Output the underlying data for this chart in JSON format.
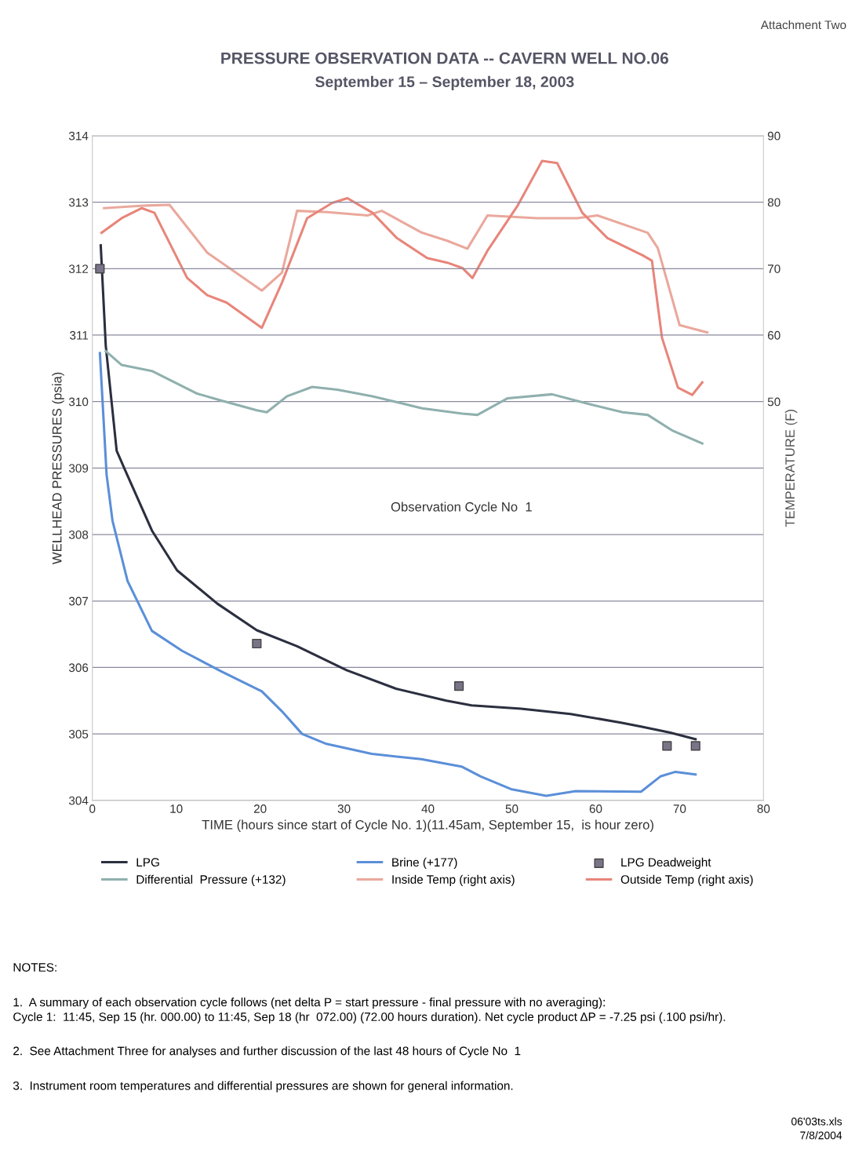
{
  "chart_data": {
    "type": "line",
    "title": "PRESSURE OBSERVATION DATA -- CAVERN WELL NO.06",
    "subtitle": "September 15 – September 18, 2003",
    "xlabel": "TIME (hours since start of Cycle No. 1)(11.45am, September 15,  is hour zero)",
    "ylabel": "WELLHEAD PRESSURES (psia)",
    "y2label": "TEMPERATURE (F)",
    "xlim": [
      0,
      80
    ],
    "xticks": [
      0,
      10,
      20,
      30,
      40,
      50,
      60,
      70,
      80
    ],
    "ylim": [
      304,
      314
    ],
    "yticks": [
      304,
      305,
      306,
      307,
      308,
      309,
      310,
      311,
      312,
      313,
      314
    ],
    "y2lim": [
      -10,
      90
    ],
    "y2ticks": [
      50,
      60,
      70,
      80,
      90
    ],
    "grid": "y",
    "legend": "bottom",
    "series": [
      {
        "name": "LPG",
        "color": "#2b2f3f",
        "x": [
          1.0,
          1.6,
          2.9,
          3.9,
          7.1,
          10.1,
          14.9,
          19.6,
          24.4,
          30.3,
          36.2,
          42.2,
          45.2,
          51.1,
          57.0,
          63.0,
          65.4,
          68.9,
          71.9
        ],
        "values": [
          312.35,
          310.84,
          309.26,
          308.97,
          308.06,
          307.46,
          306.96,
          306.56,
          306.32,
          305.96,
          305.68,
          305.5,
          305.43,
          305.38,
          305.3,
          305.17,
          305.11,
          305.02,
          304.92
        ]
      },
      {
        "name": "Differential  Pressure (+132)",
        "color": "#8fb0ae",
        "x": [
          1.6,
          3.5,
          7.1,
          12.5,
          15.5,
          19.6,
          20.8,
          23.2,
          26.2,
          29.2,
          33.4,
          39.3,
          44.1,
          45.9,
          49.5,
          54.8,
          59.0,
          63.2,
          66.2,
          69.2,
          72.7
        ],
        "values": [
          310.76,
          310.55,
          310.46,
          310.12,
          310.01,
          309.87,
          309.84,
          310.08,
          310.22,
          310.18,
          310.08,
          309.9,
          309.82,
          309.8,
          310.05,
          310.11,
          309.97,
          309.84,
          309.8,
          309.56,
          309.37
        ]
      },
      {
        "name": "Brine (+177)",
        "color": "#5b8fd8",
        "x": [
          0.9,
          1.7,
          2.4,
          4.2,
          7.1,
          10.7,
          15.4,
          20.2,
          22.6,
          25.0,
          27.9,
          33.3,
          39.2,
          44.0,
          46.3,
          49.9,
          54.1,
          57.6,
          65.4,
          67.7,
          69.5,
          71.9
        ],
        "values": [
          310.73,
          308.9,
          308.21,
          307.3,
          306.55,
          306.25,
          305.94,
          305.64,
          305.34,
          305.0,
          304.85,
          304.7,
          304.62,
          304.51,
          304.36,
          304.17,
          304.07,
          304.14,
          304.13,
          304.36,
          304.43,
          304.39
        ]
      },
      {
        "name": "Inside Temp (right axis)",
        "color": "#eaa89c",
        "axis": "y2",
        "x": [
          1.4,
          6.5,
          9.2,
          13.7,
          20.2,
          22.6,
          24.4,
          28.0,
          32.8,
          34.5,
          39.3,
          42.3,
          44.7,
          47.1,
          53.0,
          57.8,
          60.2,
          66.2,
          67.4,
          70.0,
          73.3
        ],
        "values": [
          79.1,
          79.5,
          79.6,
          72.4,
          66.7,
          69.4,
          78.7,
          78.5,
          78.0,
          78.7,
          75.4,
          74.2,
          73.0,
          78.0,
          77.6,
          77.6,
          78.0,
          75.4,
          73.1,
          61.5,
          60.4
        ]
      },
      {
        "name": "LPG Deadweight",
        "color": "#7a7488",
        "type": "scatter",
        "marker": "square",
        "x": [
          0.9,
          19.6,
          43.7,
          68.5,
          71.9
        ],
        "values": [
          312.0,
          306.36,
          305.72,
          304.82,
          304.82
        ]
      },
      {
        "name": "Outside Temp (right axis)",
        "color": "#e8857a",
        "axis": "y2",
        "x": [
          1.1,
          3.5,
          5.9,
          7.4,
          11.3,
          13.7,
          16.0,
          20.2,
          22.6,
          25.6,
          28.6,
          30.4,
          33.4,
          36.3,
          39.9,
          42.3,
          44.1,
          45.3,
          47.1,
          50.7,
          53.6,
          55.4,
          58.4,
          61.4,
          65.6,
          66.7,
          67.9,
          69.8,
          71.5,
          72.7
        ],
        "values": [
          75.4,
          77.6,
          79.1,
          78.4,
          68.6,
          66.0,
          64.9,
          61.1,
          67.9,
          77.6,
          79.9,
          80.6,
          78.4,
          74.6,
          71.6,
          70.9,
          70.1,
          68.6,
          72.7,
          79.5,
          86.2,
          85.9,
          78.4,
          74.6,
          72.0,
          71.2,
          59.6,
          52.1,
          51.0,
          52.9
        ]
      }
    ],
    "annotations": [
      "Attachment Two",
      "Observation Cycle No  1",
      "NOTES:",
      "1.  A summary of each observation cycle follows (net delta P = start pressure - final pressure with no averaging):\nCycle 1:  11:45, Sep 15 (hr. 000.00) to 11:45, Sep 18 (hr  072.00) (72.00 hours duration). Net cycle product ΔP = -7.25 psi (.100 psi/hr).",
      "2.  See Attachment Three for analyses and further discussion of the last 48 hours of Cycle No  1",
      "3.  Instrument room temperatures and differential pressures are shown for general information.",
      "06'03ts.xls",
      "7/8/2004"
    ]
  }
}
